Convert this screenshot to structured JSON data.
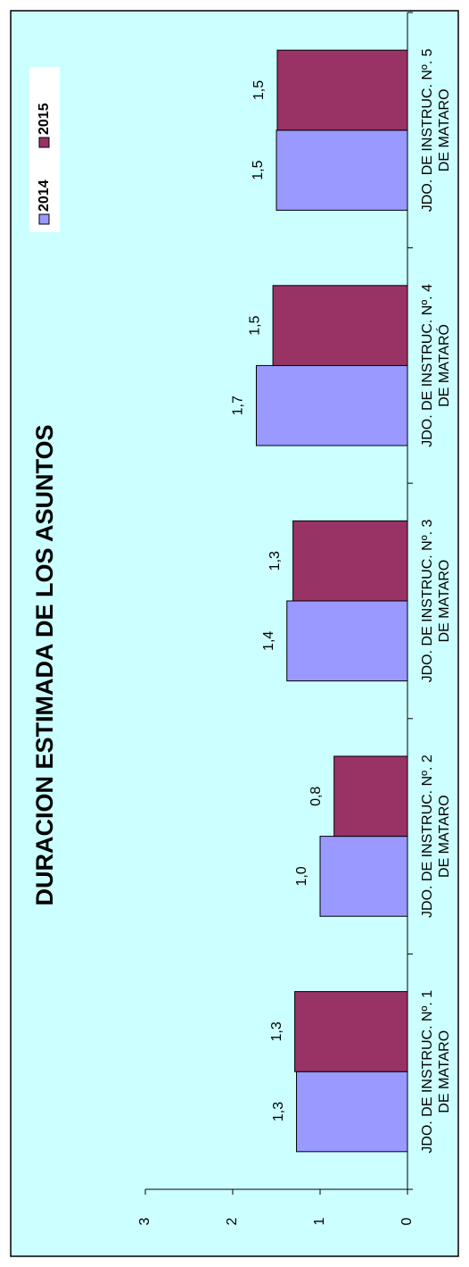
{
  "chart_data": {
    "type": "bar",
    "title": "DURACION ESTIMADA DE LOS ASUNTOS",
    "categories": [
      [
        "JDO. DE INSTRUC. Nº. 1",
        "DE MATARO"
      ],
      [
        "JDO. DE INSTRUC. Nº. 2",
        "DE MATARO"
      ],
      [
        "JDO. DE INSTRUC. Nº. 3",
        "DE MATARO"
      ],
      [
        "JDO. DE INSTRUC. Nº. 4",
        "DE MATARÓ"
      ],
      [
        "JDO. DE INSTRUC. Nº. 5",
        "DE MATARO"
      ]
    ],
    "series": [
      {
        "name": "2014",
        "color": "#9999ff",
        "values": [
          1.27,
          1.0,
          1.38,
          1.73,
          1.5
        ],
        "value_labels": [
          "1,3",
          "1,0",
          "1,4",
          "1,7",
          "1,5"
        ]
      },
      {
        "name": "2015",
        "color": "#993366",
        "values": [
          1.29,
          0.84,
          1.31,
          1.54,
          1.49
        ],
        "value_labels": [
          "1,3",
          "0,8",
          "1,3",
          "1,5",
          "1,5"
        ]
      }
    ],
    "ylim": [
      0,
      3
    ],
    "yticks": [
      0,
      1,
      2,
      3
    ]
  }
}
